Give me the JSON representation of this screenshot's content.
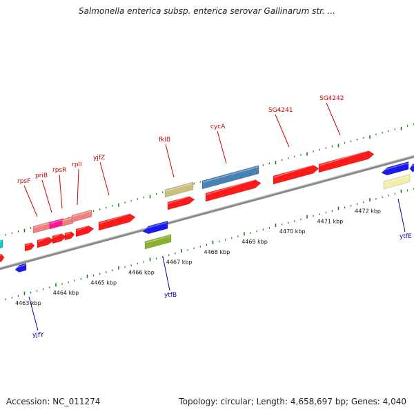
{
  "title": "Salmonella enterica subsp. enterica serovar Gallinarum str. ...",
  "footer": {
    "accession": "Accession: NC_011274",
    "summary": "Topology: circular; Length: 4,658,697 bp; Genes: 4,040"
  },
  "colors": {
    "backbone": "#8a8a8a",
    "tick": "#1a7a1a",
    "gene_red": "#ff1a1a",
    "gene_pink": "#f08080",
    "gene_magenta": "#ff1493",
    "gene_blue": "#1a1aee",
    "gene_steel": "#4682b4",
    "gene_olive": "#8ab030",
    "gene_khaki": "#c8c080",
    "gene_yellow": "#f4eeaa",
    "gene_cyan": "#00cccc",
    "label_red": "#cc0000",
    "label_blue": "#0000aa"
  },
  "scale_labels": [
    {
      "text": "4463 kbp",
      "kbp": 4463
    },
    {
      "text": "4464 kbp",
      "kbp": 4464
    },
    {
      "text": "4465 kbp",
      "kbp": 4465
    },
    {
      "text": "4466 kbp",
      "kbp": 4466
    },
    {
      "text": "4467 kbp",
      "kbp": 4467
    },
    {
      "text": "4468 kbp",
      "kbp": 4468
    },
    {
      "text": "4469 kbp",
      "kbp": 4469
    },
    {
      "text": "4470 kbp",
      "kbp": 4470
    },
    {
      "text": "4471 kbp",
      "kbp": 4471
    },
    {
      "text": "4472 kbp",
      "kbp": 4472
    }
  ],
  "gene_labels_forward": [
    "rpsF",
    "priB",
    "rpsR",
    "rplI",
    "yjfZ",
    "fklB",
    "cycA",
    "SG4241",
    "SG4242"
  ],
  "gene_labels_reverse": [
    "yjfY",
    "ytfB",
    "ytfE"
  ]
}
